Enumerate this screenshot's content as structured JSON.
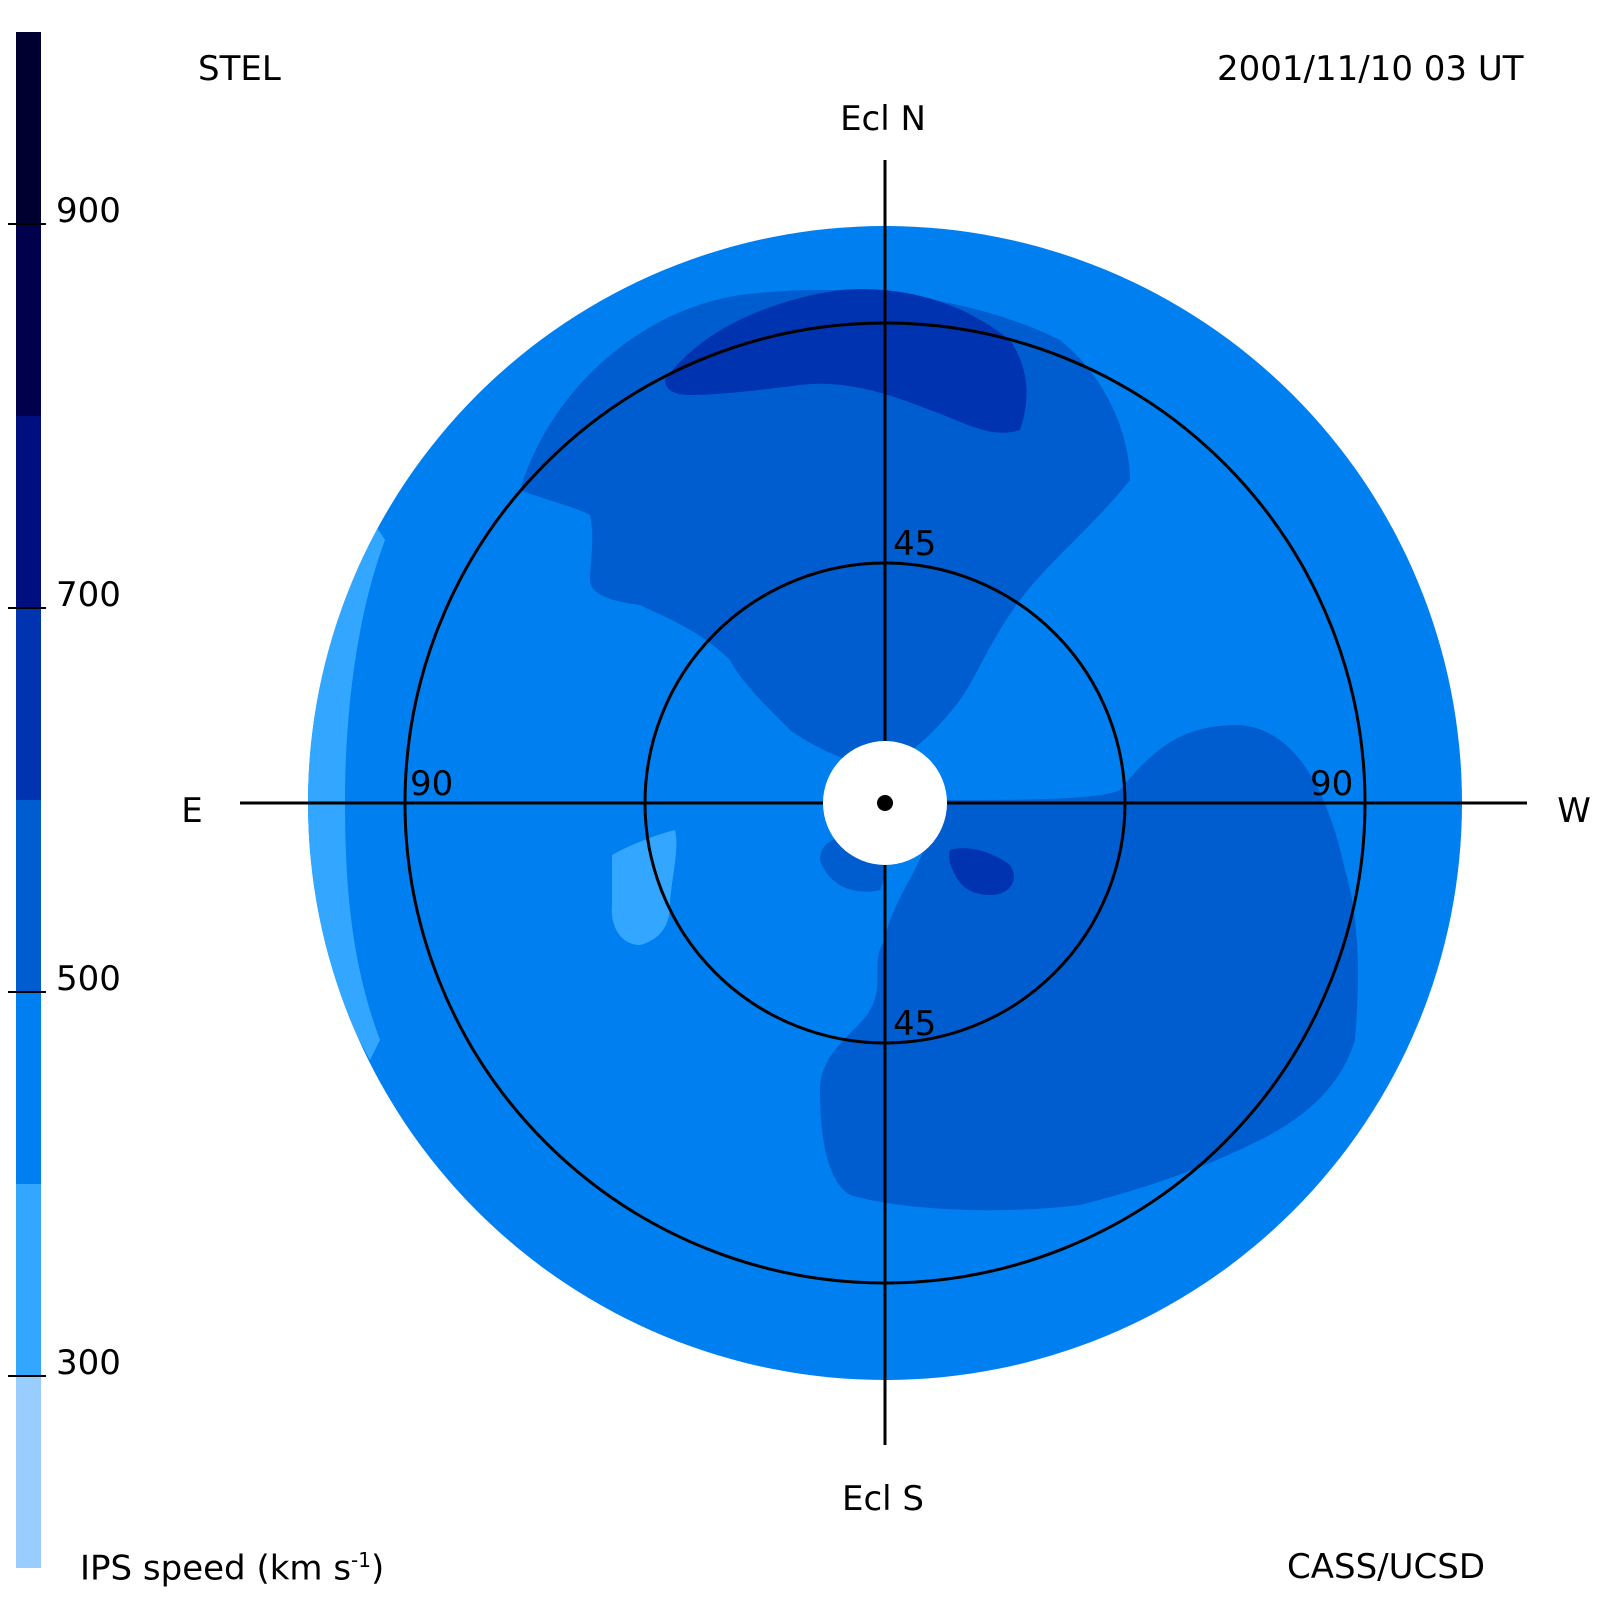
{
  "header": {
    "source_label": "STEL",
    "timestamp": "2001/11/10 03 UT"
  },
  "footer": {
    "colorbar_title": "IPS speed (km s",
    "colorbar_title_sup": "-1",
    "colorbar_title_end": ")",
    "credit": "CASS/UCSD"
  },
  "map": {
    "projection": "fisheye sky map centered on the Sun",
    "directions": {
      "north": "Ecl N",
      "south": "Ecl S",
      "east": "E",
      "west": "W"
    },
    "elongation_rings": [
      {
        "value": 45,
        "labels": [
          "45",
          "45"
        ]
      },
      {
        "value": 90,
        "labels": [
          "90",
          "90"
        ]
      }
    ],
    "colors": {
      "v200": "#99ccff",
      "v300": "#33a6ff",
      "v400": "#0080f0",
      "v500": "#005dd0",
      "v600": "#0033b0",
      "v700": "#000f80",
      "v800": "#00004d",
      "v900": "#000030",
      "sun_disk": "#ffffff",
      "lines": "#000000"
    },
    "regions": [
      {
        "name": "background-speed-region",
        "level": 400
      },
      {
        "name": "northern-fast-region",
        "level": 500
      },
      {
        "name": "northern-core-region",
        "level": 600
      },
      {
        "name": "southwest-fast-region",
        "level": 500
      },
      {
        "name": "central-core-region",
        "level": 600
      },
      {
        "name": "eastern-slow-rim",
        "level": 300
      },
      {
        "name": "eastern-slow-patch",
        "level": 300
      }
    ]
  },
  "colorbar": {
    "min": 200,
    "max": 1000,
    "segments": [
      {
        "from": 200,
        "to": 300,
        "color": "#99ccff"
      },
      {
        "from": 300,
        "to": 400,
        "color": "#33a6ff"
      },
      {
        "from": 400,
        "to": 500,
        "color": "#0080f0"
      },
      {
        "from": 500,
        "to": 600,
        "color": "#005dd0"
      },
      {
        "from": 600,
        "to": 700,
        "color": "#0033b0"
      },
      {
        "from": 700,
        "to": 800,
        "color": "#000f80"
      },
      {
        "from": 800,
        "to": 900,
        "color": "#00004d"
      },
      {
        "from": 900,
        "to": 1000,
        "color": "#000030"
      }
    ],
    "ticks": [
      {
        "value": 300,
        "label": "300"
      },
      {
        "value": 500,
        "label": "500"
      },
      {
        "value": 700,
        "label": "700"
      },
      {
        "value": 900,
        "label": "900"
      }
    ]
  }
}
